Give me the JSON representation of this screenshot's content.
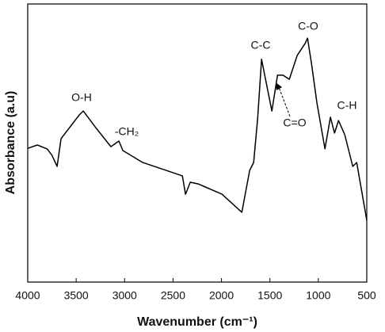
{
  "chart_data": {
    "type": "line",
    "x_label": "Wavenumber (cm⁻¹)",
    "y_label": "Absorbance (a.u)",
    "x": [
      4000,
      3900,
      3800,
      3750,
      3697,
      3656,
      3468,
      3427,
      3304,
      3141,
      3059,
      3018,
      2813,
      2404,
      2371,
      2322,
      2240,
      1995,
      1790,
      1709,
      1668,
      1627,
      1586,
      1545,
      1480,
      1422,
      1365,
      1300,
      1218,
      1136,
      1112,
      1071,
      1014,
      932,
      875,
      833,
      792,
      727,
      645,
      604,
      500
    ],
    "values": [
      48.1,
      49.3,
      47.9,
      45.6,
      41.6,
      51.6,
      60.1,
      61.5,
      55.8,
      48.7,
      50.7,
      47.3,
      43.0,
      38.2,
      31.6,
      35.9,
      35.3,
      31.6,
      25.1,
      40.2,
      43.0,
      58.7,
      80.1,
      72.9,
      61.5,
      74.4,
      74.4,
      72.9,
      81.5,
      85.8,
      87.7,
      78.6,
      64.4,
      47.9,
      59.3,
      53.6,
      58.1,
      53.0,
      41.6,
      43.0,
      22.2
    ],
    "color": "#000000",
    "xlim": [
      4000,
      500
    ],
    "xticks": [
      4000,
      3500,
      3000,
      2500,
      2000,
      1500,
      1000,
      500
    ],
    "ylim": [
      0,
      100
    ],
    "annotations": [
      "O-H",
      "-CH₂",
      "C-C",
      "C-O",
      "C=O",
      "C-H"
    ]
  }
}
